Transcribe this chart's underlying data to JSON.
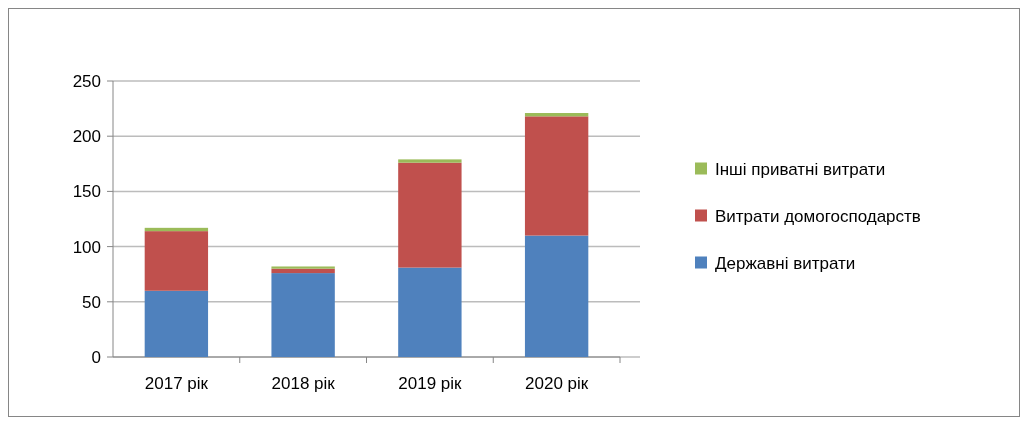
{
  "chart_data": {
    "type": "bar",
    "stacked": true,
    "categories": [
      "2017 рік",
      "2018 рік",
      "2019 рік",
      "2020 рік"
    ],
    "series": [
      {
        "name": "Державні витрати",
        "color": "#4f81bd",
        "values": [
          60,
          76,
          81,
          110
        ]
      },
      {
        "name": "Витрати домогосподарств",
        "color": "#c0504d",
        "values": [
          54,
          4,
          95,
          108
        ]
      },
      {
        "name": "Інші приватні витрати",
        "color": "#9bbb59",
        "values": [
          3,
          2,
          3,
          3
        ]
      }
    ],
    "ylim": [
      0,
      250
    ],
    "yticks": [
      0,
      50,
      100,
      150,
      200,
      250
    ],
    "grid": "y",
    "legend": "right"
  }
}
